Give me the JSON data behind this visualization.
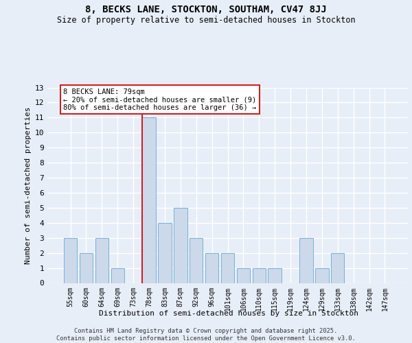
{
  "title": "8, BECKS LANE, STOCKTON, SOUTHAM, CV47 8JJ",
  "subtitle": "Size of property relative to semi-detached houses in Stockton",
  "xlabel": "Distribution of semi-detached houses by size in Stockton",
  "ylabel": "Number of semi-detached properties",
  "categories": [
    "55sqm",
    "60sqm",
    "64sqm",
    "69sqm",
    "73sqm",
    "78sqm",
    "83sqm",
    "87sqm",
    "92sqm",
    "96sqm",
    "101sqm",
    "106sqm",
    "110sqm",
    "115sqm",
    "119sqm",
    "124sqm",
    "129sqm",
    "133sqm",
    "138sqm",
    "142sqm",
    "147sqm"
  ],
  "values": [
    3,
    2,
    3,
    1,
    0,
    11,
    4,
    5,
    3,
    2,
    2,
    1,
    1,
    1,
    0,
    3,
    1,
    2,
    0,
    0,
    0
  ],
  "bar_color": "#ccd9ea",
  "bar_edge_color": "#7aafd4",
  "highlight_bar_index": 5,
  "vline_color": "#cc2222",
  "annotation_title": "8 BECKS LANE: 79sqm",
  "annotation_line1": "← 20% of semi-detached houses are smaller (9)",
  "annotation_line2": "80% of semi-detached houses are larger (36) →",
  "ylim": [
    0,
    13
  ],
  "yticks": [
    0,
    1,
    2,
    3,
    4,
    5,
    6,
    7,
    8,
    9,
    10,
    11,
    12,
    13
  ],
  "background_color": "#e8eef8",
  "grid_color": "#ffffff",
  "title_fontsize": 10,
  "subtitle_fontsize": 8.5,
  "footer_line1": "Contains HM Land Registry data © Crown copyright and database right 2025.",
  "footer_line2": "Contains public sector information licensed under the Open Government Licence v3.0."
}
